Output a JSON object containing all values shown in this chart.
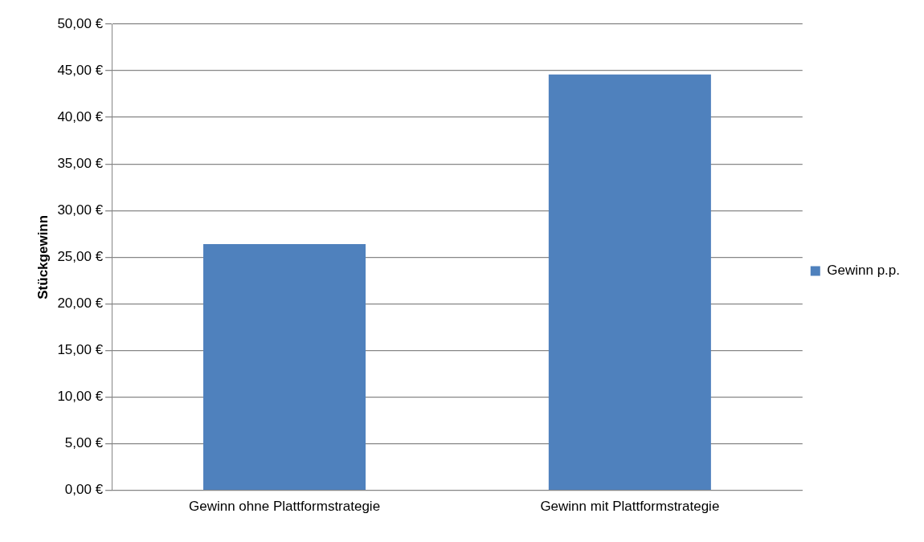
{
  "chart_data": {
    "type": "bar",
    "ylabel": "Stückgewinn",
    "categories": [
      "Gewinn ohne Plattformstrategie",
      "Gewinn mit Plattformstrategie"
    ],
    "series": [
      {
        "name": "Gewinn p.p.",
        "color": "#4f81bd",
        "values": [
          26.4,
          44.6
        ]
      }
    ],
    "ylim": [
      0,
      50
    ],
    "yticks": [
      {
        "value": 0,
        "label": "0,00 €"
      },
      {
        "value": 5,
        "label": "5,00 €"
      },
      {
        "value": 10,
        "label": "10,00 €"
      },
      {
        "value": 15,
        "label": "15,00 €"
      },
      {
        "value": 20,
        "label": "20,00 €"
      },
      {
        "value": 25,
        "label": "25,00 €"
      },
      {
        "value": 30,
        "label": "30,00 €"
      },
      {
        "value": 35,
        "label": "35,00 €"
      },
      {
        "value": 40,
        "label": "40,00 €"
      },
      {
        "value": 45,
        "label": "45,00 €"
      },
      {
        "value": 50,
        "label": "50,00 €"
      }
    ],
    "grid": "y",
    "legend": "right"
  }
}
